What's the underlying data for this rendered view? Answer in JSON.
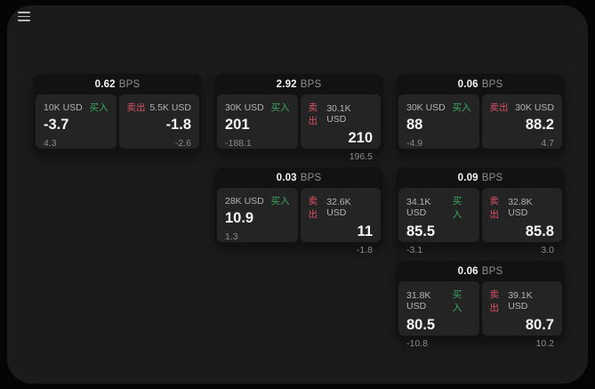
{
  "labels": {
    "buy": "买入",
    "sell": "卖出",
    "bps_unit": "BPS"
  },
  "icons": {
    "menu": "hamburger-icon"
  },
  "colors": {
    "background": "#050505",
    "panel": "#1b1b1c",
    "card": "#121212",
    "pane": "#242424",
    "buy_green": "#3aa85f",
    "sell_red": "#d65266",
    "value_white": "#f5f5f5",
    "muted_gray": "#8a8a8a"
  },
  "cards": [
    {
      "bps": "0.62",
      "buy": {
        "amount": "10K USD",
        "value": "-3.7",
        "sub": "4.3"
      },
      "sell": {
        "amount": "5.5K USD",
        "value": "-1.8",
        "sub": "-2.6"
      }
    },
    {
      "bps": "2.92",
      "buy": {
        "amount": "30K USD",
        "value": "201",
        "sub": "-188.1"
      },
      "sell": {
        "amount": "30.1K USD",
        "value": "210",
        "sub": "196.5"
      }
    },
    {
      "bps": "0.06",
      "buy": {
        "amount": "30K USD",
        "value": "88",
        "sub": "-4.9"
      },
      "sell": {
        "amount": "30K USD",
        "value": "88.2",
        "sub": "4.7"
      }
    },
    {
      "bps": "0.03",
      "buy": {
        "amount": "28K USD",
        "value": "10.9",
        "sub": "1.3"
      },
      "sell": {
        "amount": "32.6K USD",
        "value": "11",
        "sub": "-1.8"
      }
    },
    {
      "bps": "0.09",
      "buy": {
        "amount": "34.1K USD",
        "value": "85.5",
        "sub": "-3.1"
      },
      "sell": {
        "amount": "32.8K USD",
        "value": "85.8",
        "sub": "3.0"
      }
    },
    {
      "bps": "0.06",
      "buy": {
        "amount": "31.8K USD",
        "value": "80.5",
        "sub": "-10.8"
      },
      "sell": {
        "amount": "39.1K USD",
        "value": "80.7",
        "sub": "10.2"
      }
    }
  ]
}
